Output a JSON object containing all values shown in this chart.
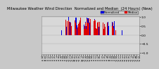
{
  "title": "Milwaukee Weather Wind Direction Normalized and Median (24 Hours) (New)",
  "title_fontsize": 3.8,
  "background_color": "#c8c8c8",
  "plot_bg_color": "#d8d8d8",
  "bar_width": 0.7,
  "ylim": [
    -1.05,
    1.05
  ],
  "legend_labels": [
    "Normalized",
    "Median"
  ],
  "legend_colors": [
    "#0000dd",
    "#dd0000"
  ],
  "ylabel_fontsize": 3.2,
  "xlabel_fontsize": 2.5,
  "yticks": [
    -1.0,
    -0.5,
    0.0,
    0.5,
    1.0
  ],
  "n_points": 288,
  "grid_color": "#aaaaaa",
  "seed": 123,
  "normalized": [
    0,
    0,
    0,
    0,
    0,
    0,
    0,
    0,
    0,
    0,
    0,
    0,
    0,
    0,
    0,
    0,
    0,
    0,
    0,
    0,
    0,
    0,
    0,
    0,
    0,
    0,
    0,
    0,
    0,
    0,
    0,
    0,
    0,
    0,
    0,
    0,
    0,
    0,
    0,
    0,
    0,
    0,
    0,
    0,
    0,
    0,
    0,
    0,
    0,
    0,
    0,
    0,
    0,
    0,
    0,
    0,
    0,
    0,
    0,
    0,
    0,
    0,
    0,
    0,
    0,
    0,
    0,
    0,
    0.3,
    0,
    0,
    0,
    0.4,
    0,
    0,
    0,
    0.5,
    0.6,
    0,
    0,
    0.8,
    0.7,
    0.9,
    1.0,
    0.8,
    0.9,
    0.95,
    1.0,
    0.85,
    0.9,
    0.8,
    0.7,
    0.6,
    0.75,
    0.85,
    0.9,
    0.95,
    1.0,
    0.9,
    0.85,
    0.8,
    0.75,
    0.7,
    0.65,
    0.8,
    0.85,
    0.9,
    0.95,
    1.0,
    0.95,
    0.9,
    0.85,
    0.8,
    0.75,
    0.8,
    0.85,
    0.9,
    0.85,
    0.8,
    0.75,
    0.7,
    0.6,
    0.65,
    0.7,
    0.75,
    0.8,
    0.75,
    0.7,
    0.65,
    0.6,
    0.55,
    0.5,
    0.45,
    0.5,
    0.55,
    0.6,
    0.55,
    0.5,
    0.45,
    0.4,
    0.35,
    0.3,
    0.25,
    0.2,
    0.15,
    0.1,
    0.05,
    0,
    0,
    0,
    0,
    0,
    0,
    0,
    0,
    0,
    0,
    0,
    0,
    0,
    0,
    0,
    0.1,
    0,
    0,
    0,
    0,
    0.15,
    0,
    0,
    0,
    0,
    0,
    0,
    0,
    0,
    0,
    0,
    0,
    0,
    0,
    0,
    0,
    0,
    0,
    0,
    0,
    0,
    0,
    0,
    0,
    0,
    0,
    0,
    0,
    0,
    0,
    0,
    0,
    0,
    0,
    0,
    0,
    0,
    0,
    0,
    0,
    0,
    0,
    0,
    0,
    0,
    0,
    0,
    0,
    0,
    0,
    0,
    0,
    0,
    0,
    0,
    0,
    0,
    0,
    0,
    0,
    0,
    0,
    0,
    0,
    0,
    0,
    0,
    0,
    0,
    0,
    0,
    0,
    0,
    0,
    0,
    0,
    0,
    0,
    0,
    0,
    0,
    0,
    0,
    0,
    0,
    0,
    0,
    0,
    0,
    0,
    0,
    0,
    0,
    0,
    0,
    0,
    0,
    0,
    0,
    0,
    0,
    0,
    0,
    0,
    0,
    0,
    0,
    0,
    0,
    0,
    0,
    0,
    0,
    0,
    0,
    0,
    0,
    0,
    0,
    0,
    0,
    0,
    0,
    0,
    0
  ],
  "median_vals": [
    0,
    0,
    0,
    0,
    0,
    0,
    0,
    0,
    0,
    0,
    0,
    0,
    0,
    0,
    0,
    0,
    0,
    0,
    0,
    0,
    0,
    0,
    0,
    0,
    0,
    0,
    0,
    0,
    0,
    0,
    0,
    0,
    0,
    0,
    0,
    0,
    0,
    0,
    0,
    0,
    0,
    0,
    0,
    0,
    0,
    0,
    0,
    0,
    0,
    0,
    0,
    0,
    0,
    0,
    0,
    0,
    0,
    0,
    0,
    0,
    0,
    0,
    0,
    0,
    0,
    0,
    0.2,
    0,
    0.35,
    0,
    0,
    0,
    0.45,
    0,
    0,
    0,
    0.55,
    0.65,
    0,
    0,
    0.75,
    0.7,
    0.85,
    0.95,
    0.8,
    0.88,
    0.92,
    0.98,
    0.82,
    0.88,
    0.78,
    0.68,
    0.58,
    0.72,
    0.82,
    0.88,
    0.92,
    0.98,
    0.88,
    0.82,
    0.78,
    0.72,
    0.68,
    0.62,
    0.78,
    0.82,
    0.88,
    0.92,
    0.98,
    0.92,
    0.88,
    0.82,
    0.78,
    0.72,
    0.78,
    0.82,
    0.88,
    0.82,
    0.78,
    0.72,
    0.68,
    0.58,
    0.62,
    0.68,
    0.72,
    0.78,
    0.72,
    0.68,
    0.62,
    0.58,
    0.52,
    0.48,
    0.42,
    0.48,
    0.52,
    0.58,
    0.52,
    0.48,
    0.42,
    0.38,
    0.32,
    0.28,
    0.22,
    0.18,
    0.12,
    0.08,
    0,
    0,
    0,
    0,
    0,
    0,
    0,
    0,
    0,
    0,
    0,
    0,
    0,
    0,
    0,
    0.08,
    0,
    0,
    0,
    0,
    0.12,
    0,
    0,
    0,
    0,
    0,
    0,
    0,
    0,
    0,
    0,
    0,
    0,
    0,
    0,
    0,
    0,
    0,
    0,
    0,
    0,
    0,
    0,
    0,
    0,
    0,
    0,
    0,
    0,
    0,
    0,
    0,
    0,
    0,
    0,
    0,
    0,
    0,
    0,
    0,
    0,
    0,
    0,
    0,
    0,
    0,
    0,
    0,
    0,
    0,
    0,
    0,
    0,
    0,
    0,
    0,
    0,
    0,
    0,
    0,
    0,
    0,
    0,
    0,
    0,
    0,
    0,
    0,
    0,
    0,
    0,
    0,
    0,
    0,
    0,
    0,
    0,
    0,
    0,
    0,
    0,
    0,
    0,
    0,
    0,
    0,
    0,
    0,
    0,
    0,
    0,
    0,
    0,
    0,
    0,
    0,
    0,
    0,
    0,
    0,
    0,
    0,
    0,
    0,
    0,
    0,
    0,
    0,
    0,
    0,
    0,
    0,
    0,
    0,
    0,
    0,
    0,
    0,
    0,
    0,
    0,
    0,
    0,
    0,
    0
  ]
}
